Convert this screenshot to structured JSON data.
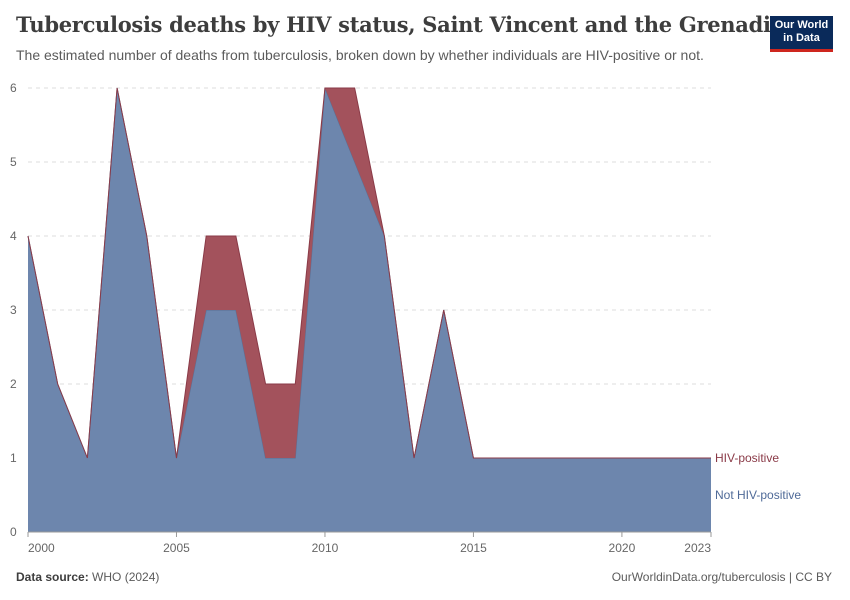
{
  "header": {
    "title": "Tuberculosis deaths by HIV status, Saint Vincent and the Grenadines",
    "subtitle": "The estimated number of deaths from tuberculosis, broken down by whether individuals are HIV-positive or not."
  },
  "logo": {
    "line1": "Our World",
    "line2": "in Data"
  },
  "footer": {
    "source_label": "Data source:",
    "source_value": "WHO (2024)",
    "link": "OurWorldinData.org/tuberculosis | CC BY"
  },
  "chart_data": {
    "type": "area",
    "stacked": true,
    "x": [
      2000,
      2001,
      2002,
      2003,
      2004,
      2005,
      2006,
      2007,
      2008,
      2009,
      2010,
      2011,
      2012,
      2013,
      2014,
      2015,
      2016,
      2017,
      2018,
      2019,
      2020,
      2021,
      2022,
      2023
    ],
    "series": [
      {
        "name": "Not HIV-positive",
        "color": "#6d86ad",
        "values": [
          4,
          2,
          1,
          6,
          4,
          1,
          3,
          3,
          1,
          1,
          6,
          5,
          4,
          1,
          3,
          1,
          1,
          1,
          1,
          1,
          1,
          1,
          1,
          1
        ]
      },
      {
        "name": "HIV-positive",
        "color": "#a3525c",
        "values": [
          0,
          0,
          0,
          0,
          0,
          0,
          1,
          1,
          1,
          1,
          0,
          1,
          0,
          0,
          0,
          0,
          0,
          0,
          0,
          0,
          0,
          0,
          0,
          0
        ]
      }
    ],
    "x_ticks": [
      "2000",
      "2005",
      "2010",
      "2015",
      "2020",
      "2023"
    ],
    "y_ticks": [
      "0",
      "1",
      "2",
      "3",
      "4",
      "5",
      "6"
    ],
    "ylim": [
      0,
      6
    ],
    "xlim": [
      2000,
      2023
    ],
    "grid": true,
    "legend": "right-inline"
  }
}
